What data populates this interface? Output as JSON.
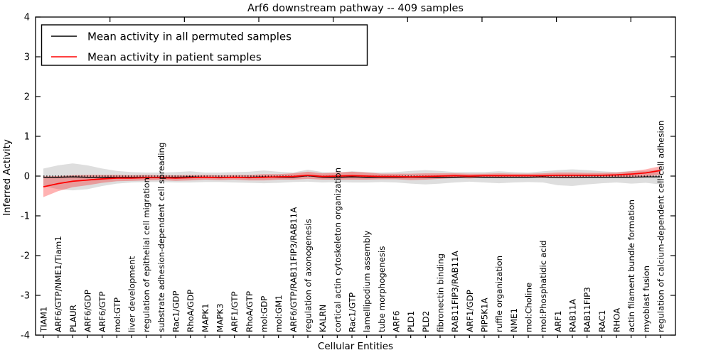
{
  "title": "Arf6 downstream pathway -- 409 samples",
  "xlabel": "Cellular Entities",
  "ylabel": "Inferred Activity",
  "legend": {
    "permuted_label": "Mean activity in all permuted samples",
    "patient_label": "Mean activity in patient samples"
  },
  "colors": {
    "permuted_line": "#000000",
    "patient_line": "#ff0000",
    "permuted_band": "#000000",
    "patient_band": "#ff0000",
    "permuted_band_opacity": 0.13,
    "patient_band_opacity": 0.3,
    "frame": "#000000",
    "background": "#ffffff"
  },
  "chart_data": {
    "type": "line",
    "title": "Arf6 downstream pathway -- 409 samples",
    "xlabel": "Cellular Entities",
    "ylabel": "Inferred Activity",
    "ylim": [
      -4,
      4
    ],
    "yticks": [
      -4,
      -3,
      -2,
      -1,
      0,
      1,
      2,
      3,
      4
    ],
    "ytick_labels": [
      "-4",
      "-3",
      "-2",
      "-1",
      "0",
      "1",
      "2",
      "3",
      "4"
    ],
    "grid": false,
    "legend_position": "upper left",
    "zero_reference_line": {
      "value": 0,
      "style": "dotted",
      "color": "#000000"
    },
    "categories": [
      "TIAM1",
      "ARF6/GTP/NME1/Tiam1",
      "PLAUR",
      "ARF6/GDP",
      "ARF6/GTP",
      "mol:GTP",
      "liver development",
      "regulation of epithelial cell migration",
      "substrate adhesion-dependent cell spreading",
      "Rac1/GDP",
      "RhoA/GDP",
      "MAPK1",
      "MAPK3",
      "ARF1/GTP",
      "RhoA/GTP",
      "mol:GDP",
      "mol:GM1",
      "ARF6/GTP/RAB11FIP3/RAB11A",
      "regulation of axonogenesis",
      "KALRN",
      "cortical actin cytoskeleton organization",
      "Rac1/GTP",
      "lamellipodium assembly",
      "tube morphogenesis",
      "ARF6",
      "PLD1",
      "PLD2",
      "fibronectin binding",
      "RAB11FIP3/RAB11A",
      "ARF1/GDP",
      "PIP5K1A",
      "ruffle organization",
      "NME1",
      "mol:Choline",
      "mol:Phosphatidic acid",
      "ARF1",
      "RAB11A",
      "RAB11FIP3",
      "RAC1",
      "RHOA",
      "actin filament bundle formation",
      "myoblast fusion",
      "regulation of calcium-dependent cell-cell adhesion"
    ],
    "series": [
      {
        "name": "Mean activity in all permuted samples",
        "color": "#000000",
        "values": [
          -0.03,
          -0.03,
          -0.02,
          -0.03,
          -0.03,
          -0.03,
          -0.03,
          -0.03,
          -0.03,
          -0.03,
          -0.02,
          -0.03,
          -0.03,
          -0.03,
          -0.03,
          -0.02,
          -0.03,
          -0.03,
          0.01,
          -0.03,
          -0.03,
          -0.02,
          -0.03,
          -0.03,
          -0.03,
          -0.03,
          -0.03,
          -0.03,
          -0.03,
          -0.02,
          -0.03,
          -0.03,
          -0.03,
          -0.03,
          -0.02,
          -0.04,
          -0.04,
          -0.03,
          -0.03,
          -0.03,
          -0.03,
          -0.02,
          -0.02
        ],
        "band_halfwidth": [
          0.22,
          0.3,
          0.34,
          0.3,
          0.22,
          0.16,
          0.13,
          0.12,
          0.12,
          0.13,
          0.14,
          0.12,
          0.12,
          0.13,
          0.14,
          0.16,
          0.14,
          0.12,
          0.15,
          0.13,
          0.12,
          0.14,
          0.13,
          0.12,
          0.13,
          0.16,
          0.18,
          0.16,
          0.13,
          0.12,
          0.13,
          0.15,
          0.13,
          0.12,
          0.14,
          0.19,
          0.21,
          0.18,
          0.15,
          0.13,
          0.16,
          0.15,
          0.19
        ]
      },
      {
        "name": "Mean activity in patient samples",
        "color": "#ff0000",
        "values": [
          -0.27,
          -0.19,
          -0.13,
          -0.1,
          -0.07,
          -0.05,
          -0.05,
          -0.04,
          -0.04,
          -0.05,
          -0.04,
          -0.03,
          -0.04,
          -0.03,
          -0.04,
          -0.03,
          -0.02,
          -0.01,
          0.02,
          -0.01,
          0.0,
          0.01,
          0.0,
          -0.01,
          -0.01,
          -0.02,
          -0.01,
          0.0,
          0.01,
          0.0,
          0.01,
          0.01,
          0.01,
          0.01,
          0.01,
          0.02,
          0.02,
          0.02,
          0.02,
          0.03,
          0.05,
          0.08,
          0.14
        ],
        "band_halfwidth": [
          0.26,
          0.19,
          0.15,
          0.13,
          0.1,
          0.08,
          0.07,
          0.07,
          0.06,
          0.07,
          0.07,
          0.06,
          0.06,
          0.06,
          0.07,
          0.08,
          0.07,
          0.08,
          0.09,
          0.08,
          0.09,
          0.1,
          0.09,
          0.07,
          0.07,
          0.08,
          0.08,
          0.07,
          0.06,
          0.06,
          0.05,
          0.06,
          0.05,
          0.05,
          0.06,
          0.07,
          0.07,
          0.06,
          0.06,
          0.06,
          0.07,
          0.09,
          0.11
        ]
      }
    ]
  }
}
